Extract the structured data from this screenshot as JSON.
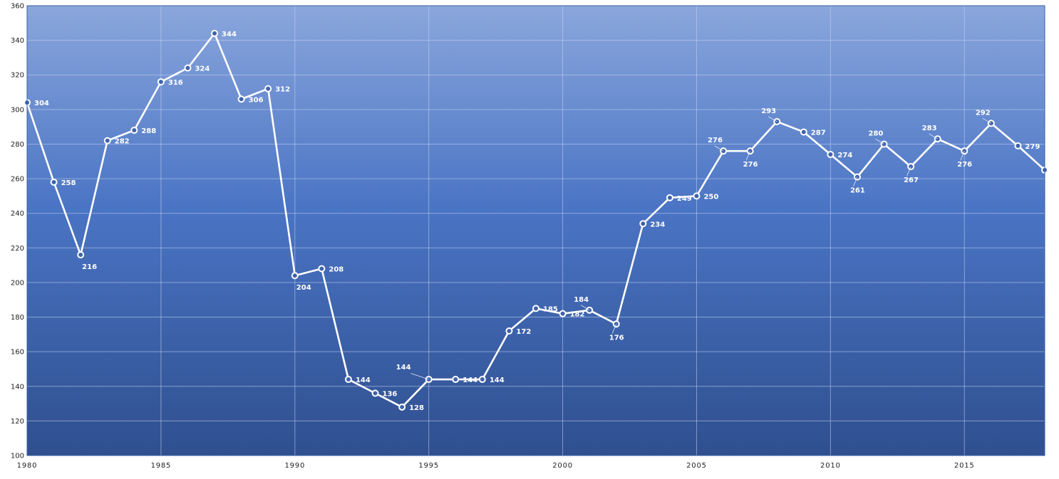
{
  "chart_data": {
    "type": "line",
    "title": "",
    "xlabel": "",
    "ylabel": "",
    "xlim": [
      1980,
      2018
    ],
    "ylim": [
      100,
      360
    ],
    "y_ticks": [
      100,
      120,
      140,
      160,
      180,
      200,
      220,
      240,
      260,
      280,
      300,
      320,
      340,
      360
    ],
    "x_ticks": [
      1980,
      1985,
      1990,
      1995,
      2000,
      2005,
      2010,
      2015
    ],
    "grid": true,
    "legend": "none",
    "series": [
      {
        "x": [
          1980,
          1981,
          1982,
          1983,
          1984,
          1985,
          1986,
          1987,
          1988,
          1989,
          1990,
          1991,
          1992,
          1993,
          1994,
          1995,
          1996,
          1997,
          1998,
          1999,
          2000,
          2001,
          2002,
          2003,
          2004,
          2005,
          2006,
          2007,
          2008,
          2009,
          2010,
          2011,
          2012,
          2013,
          2014,
          2015,
          2016,
          2017,
          2018
        ],
        "values": [
          304,
          258,
          216,
          282,
          288,
          316,
          324,
          344,
          306,
          312,
          204,
          208,
          144,
          136,
          128,
          144,
          144,
          144,
          172,
          185,
          182,
          184,
          176,
          234,
          249,
          250,
          276,
          276,
          293,
          287,
          274,
          261,
          280,
          267,
          283,
          276,
          292,
          279,
          265
        ]
      }
    ],
    "colors": {
      "background_top": "#8aa6dc",
      "background_mid": "#4a74c4",
      "background_bottom": "#2f4f8f",
      "line": "#ffffff",
      "marker_fill": "#3f63ad",
      "gridline": "#c9d6f0",
      "border": "#3a5fa8",
      "tick_label": "#222222"
    }
  }
}
